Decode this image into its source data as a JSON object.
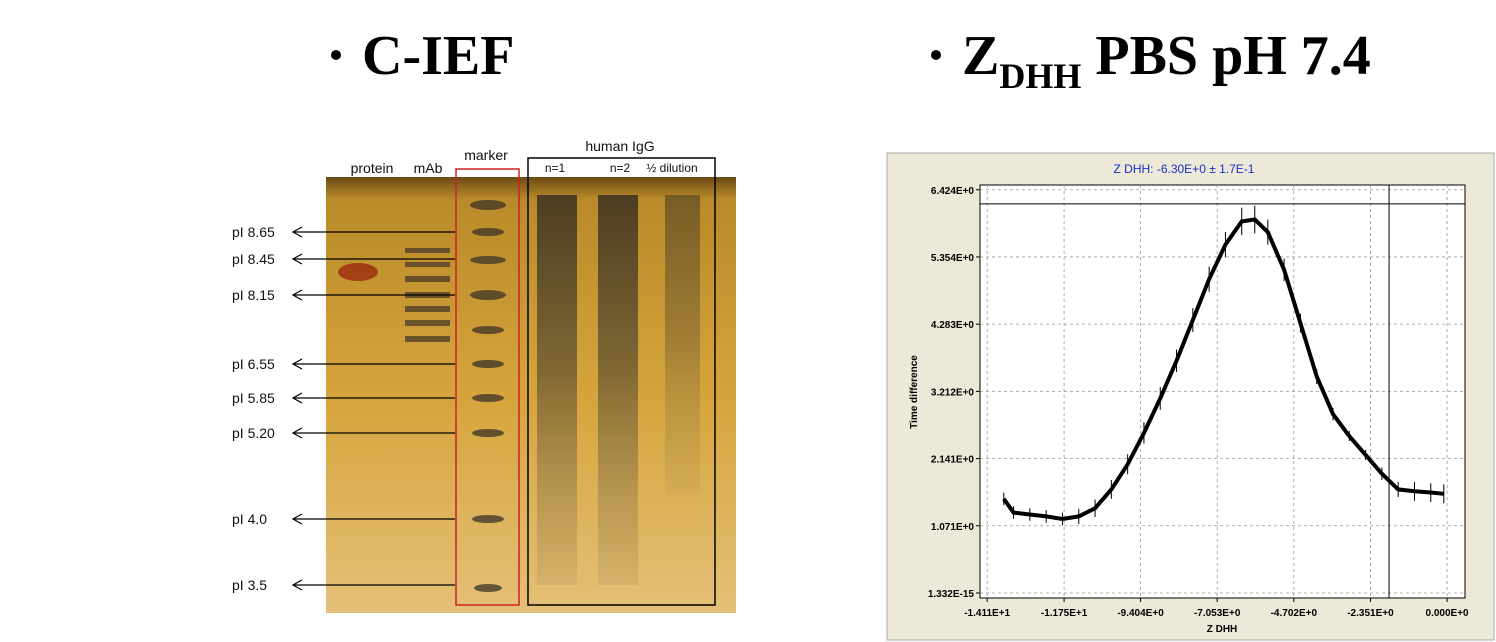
{
  "slide": {
    "left_title": "C-IEF",
    "right_title": {
      "main": "Z",
      "subscript": "DHH",
      "rest": " PBS pH 7.4"
    },
    "gel": {
      "lanes": [
        "protein",
        "mAb",
        "marker"
      ],
      "group": {
        "label": "human IgG",
        "lanes": [
          "n=1",
          "n=2",
          "½ dilution"
        ]
      },
      "pi_labels": [
        "pI 8.65",
        "pI 8.45",
        "pI 8.15",
        "pI 6.55",
        "pI 5.85",
        "pI 5.20",
        "pI 4.0",
        "pI 3.5"
      ]
    }
  },
  "chart_data": {
    "type": "line",
    "title": "Z DHH: -6.30E+0 ± 1.7E-1",
    "x_label": "Z DHH",
    "y_label": "Time difference",
    "xlim": [
      -14.33,
      0.55
    ],
    "ylim": [
      -0.08,
      6.5
    ],
    "xticks": [
      {
        "value": -14.11,
        "label": "-1.411E+1"
      },
      {
        "value": -11.75,
        "label": "-1.175E+1"
      },
      {
        "value": -9.404,
        "label": "-9.404E+0"
      },
      {
        "value": -7.053,
        "label": "-7.053E+0"
      },
      {
        "value": -4.702,
        "label": "-4.702E+0"
      },
      {
        "value": -2.351,
        "label": "-2.351E+0"
      },
      {
        "value": 0,
        "label": "0.000E+0"
      }
    ],
    "yticks": [
      {
        "value": 1.332e-15,
        "label": "1.332E-15"
      },
      {
        "value": 1.071,
        "label": "1.071E+0"
      },
      {
        "value": 2.141,
        "label": "2.141E+0"
      },
      {
        "value": 3.212,
        "label": "3.212E+0"
      },
      {
        "value": 4.283,
        "label": "4.283E+0"
      },
      {
        "value": 5.354,
        "label": "5.354E+0"
      },
      {
        "value": 6.424,
        "label": "6.424E+0"
      }
    ],
    "grid": true,
    "color": "#000000",
    "cursor": {
      "x": -1.78,
      "y": 6.2
    },
    "x": [
      -13.6,
      -13.3,
      -12.8,
      -12.3,
      -11.8,
      -11.3,
      -10.8,
      -10.3,
      -9.8,
      -9.3,
      -8.8,
      -8.3,
      -7.8,
      -7.3,
      -6.8,
      -6.3,
      -5.9,
      -5.5,
      -5.0,
      -4.5,
      -4.0,
      -3.5,
      -3.0,
      -2.5,
      -2.0,
      -1.5,
      -1.0,
      -0.5,
      -0.1
    ],
    "values": [
      1.5,
      1.28,
      1.25,
      1.22,
      1.18,
      1.22,
      1.35,
      1.65,
      2.05,
      2.55,
      3.1,
      3.7,
      4.35,
      5.0,
      5.55,
      5.92,
      5.95,
      5.75,
      5.15,
      4.3,
      3.45,
      2.85,
      2.5,
      2.2,
      1.9,
      1.65,
      1.62,
      1.6,
      1.58
    ],
    "errors": [
      0.1,
      0.1,
      0.1,
      0.1,
      0.1,
      0.12,
      0.14,
      0.15,
      0.16,
      0.17,
      0.18,
      0.18,
      0.19,
      0.2,
      0.2,
      0.22,
      0.22,
      0.2,
      0.18,
      0.15,
      0.12,
      0.1,
      0.08,
      0.08,
      0.1,
      0.12,
      0.15,
      0.15,
      0.15
    ]
  }
}
